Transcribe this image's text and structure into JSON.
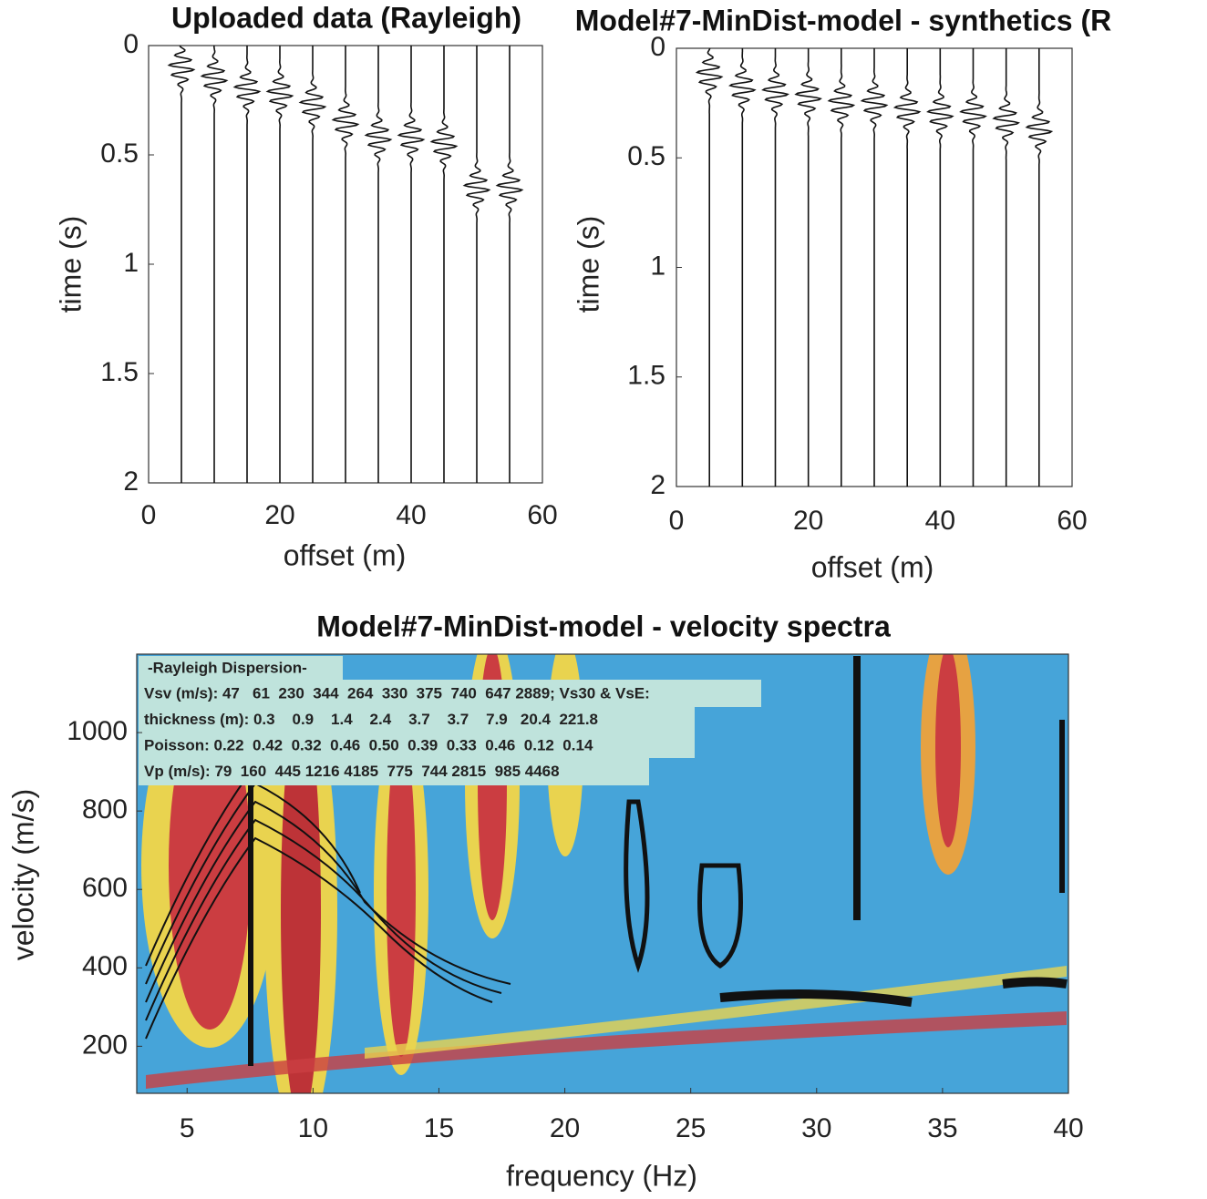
{
  "chart_data": [
    {
      "type": "seismogram",
      "title": "Uploaded data (Rayleigh)",
      "xlabel": "offset (m)",
      "ylabel": "time (s)",
      "x": [
        5,
        10,
        15,
        20,
        25,
        30,
        35,
        40,
        45,
        50,
        55
      ],
      "arrival_times": [
        0.1,
        0.15,
        0.2,
        0.22,
        0.27,
        0.35,
        0.42,
        0.42,
        0.45,
        0.65,
        0.65
      ],
      "xlim": [
        0,
        60
      ],
      "ylim": [
        0,
        2
      ],
      "xticks": [
        0,
        20,
        40,
        60
      ],
      "yticks": [
        0,
        0.5,
        1,
        1.5,
        2
      ],
      "y_inverted": true,
      "color": "#111111"
    },
    {
      "type": "seismogram",
      "title": "Model#7-MinDist-model - synthetics (R",
      "xlabel": "offset (m)",
      "ylabel": "time (s)",
      "x": [
        5,
        10,
        15,
        20,
        25,
        30,
        35,
        40,
        45,
        50,
        55
      ],
      "arrival_times": [
        0.12,
        0.18,
        0.2,
        0.22,
        0.25,
        0.25,
        0.28,
        0.3,
        0.3,
        0.33,
        0.37
      ],
      "xlim": [
        0,
        60
      ],
      "ylim": [
        0,
        2
      ],
      "xticks": [
        0,
        20,
        40,
        60
      ],
      "yticks": [
        0,
        0.5,
        1,
        1.5,
        2
      ],
      "y_inverted": true,
      "color": "#111111"
    },
    {
      "type": "spectrum",
      "title": "Model#7-MinDist-model - velocity spectra",
      "xlabel": "frequency (Hz)",
      "ylabel": "velocity (m/s)",
      "xlim": [
        3,
        40
      ],
      "ylim": [
        80,
        1200
      ],
      "xticks": [
        5,
        10,
        15,
        20,
        25,
        30,
        35,
        40
      ],
      "yticks": [
        200,
        400,
        600,
        800,
        1000
      ],
      "annotation": {
        "title": "-Rayleigh Dispersion-",
        "lines": [
          "Vsv (m/s): 47   61  230  344  264  330  375  740  647 2889; Vs30 & VsE:",
          "thickness (m): 0.3    0.9    1.4    2.4    3.7    3.7    7.9   20.4  221.8",
          "Poisson: 0.22  0.42  0.32  0.46  0.50  0.39  0.33  0.46  0.12  0.14",
          "Vp (m/s): 79  160  445 1216 4185  775  744 2815  985 4468"
        ]
      }
    }
  ]
}
